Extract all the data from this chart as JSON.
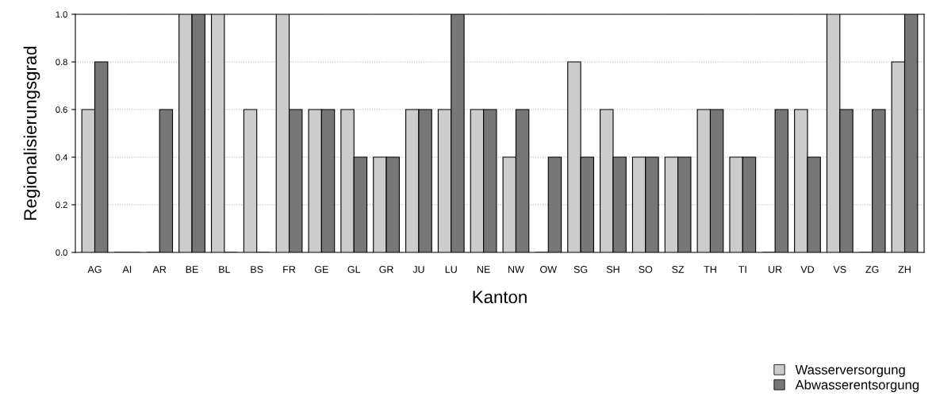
{
  "chart_data": {
    "type": "bar",
    "xlabel": "Kanton",
    "ylabel": "Regionalisierungsgrad",
    "categories": [
      "AG",
      "AI",
      "AR",
      "BE",
      "BL",
      "BS",
      "FR",
      "GE",
      "GL",
      "GR",
      "JU",
      "LU",
      "NE",
      "NW",
      "OW",
      "SG",
      "SH",
      "SO",
      "SZ",
      "TH",
      "TI",
      "UR",
      "VD",
      "VS",
      "ZG",
      "ZH"
    ],
    "series": [
      {
        "name": "Wasserversorgung",
        "color": "#cccccc",
        "values": [
          0.6,
          0,
          0,
          1.0,
          1.0,
          0.6,
          1.0,
          0.6,
          0.6,
          0.4,
          0.6,
          0.6,
          0.6,
          0.4,
          0,
          0.8,
          0.6,
          0.4,
          0.4,
          0.6,
          0.4,
          0,
          0.6,
          1.0,
          0,
          0.8
        ]
      },
      {
        "name": "Abwasserentsorgung",
        "color": "#777777",
        "values": [
          0.8,
          0,
          0.6,
          1.0,
          0,
          0,
          0.6,
          0.6,
          0.4,
          0.4,
          0.6,
          1.0,
          0.6,
          0.6,
          0.4,
          0.4,
          0.4,
          0.4,
          0.4,
          0.6,
          0.4,
          0.6,
          0.4,
          0.6,
          0.6,
          1.0
        ]
      }
    ],
    "ylim": [
      0,
      1.0
    ],
    "yticks": [
      {
        "value": 0,
        "label": "0.0"
      },
      {
        "value": 0.2,
        "label": "0.2"
      },
      {
        "value": 0.4,
        "label": "0.4"
      },
      {
        "value": 0.6,
        "label": "0.6"
      },
      {
        "value": 0.8,
        "label": "0.8"
      },
      {
        "value": 1.0,
        "label": "1.0"
      }
    ],
    "grid": "y",
    "legend": "bottom right"
  }
}
